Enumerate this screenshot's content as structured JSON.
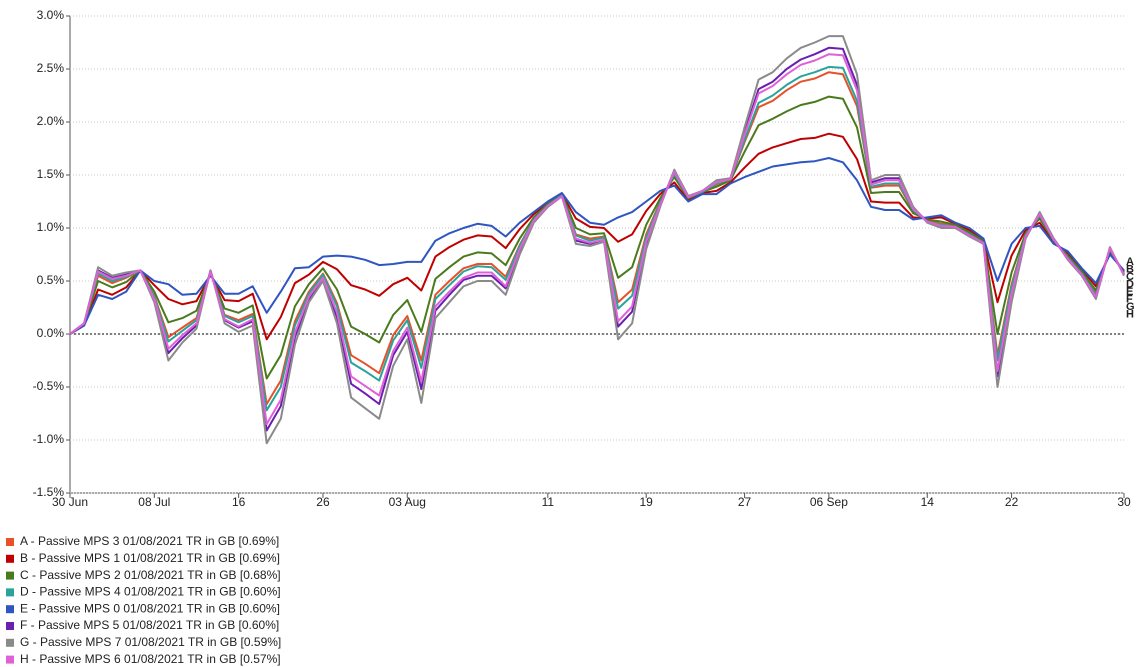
{
  "chart_data": {
    "type": "line",
    "legend": "bottom-left",
    "grid": true,
    "zero_line": true,
    "x": [
      0,
      1,
      2,
      3,
      4,
      5,
      6,
      7,
      8,
      9,
      10,
      11,
      12,
      13,
      14,
      15,
      16,
      17,
      18,
      19,
      20,
      21,
      22,
      23,
      24,
      25,
      26,
      27,
      28,
      29,
      30,
      31,
      32,
      33,
      34,
      35,
      36,
      37,
      38,
      39,
      40,
      41,
      42,
      43,
      44,
      45,
      46,
      47,
      48,
      49,
      50,
      51,
      52,
      53,
      54,
      55,
      56,
      57,
      58,
      59,
      60,
      61,
      62,
      63,
      64,
      65,
      66,
      67,
      68,
      69,
      70,
      71,
      72,
      73,
      74,
      75
    ],
    "xlim": [
      0,
      75
    ],
    "xticks": [
      {
        "value": 0,
        "label": "30 Jun"
      },
      {
        "value": 6,
        "label": "08 Jul"
      },
      {
        "value": 12,
        "label": "16"
      },
      {
        "value": 18,
        "label": "26"
      },
      {
        "value": 24,
        "label": "03 Aug"
      },
      {
        "value": 34,
        "label": "11"
      },
      {
        "value": 41,
        "label": "19"
      },
      {
        "value": 48,
        "label": "27"
      },
      {
        "value": 54,
        "label": "06 Sep"
      },
      {
        "value": 61,
        "label": "14"
      },
      {
        "value": 67,
        "label": "22"
      },
      {
        "value": 75,
        "label": "30"
      }
    ],
    "ylim": [
      -1.5,
      3
    ],
    "yticks": [
      {
        "value": -1.5,
        "label": "-1.5%"
      },
      {
        "value": -1,
        "label": "-1.0%"
      },
      {
        "value": -0.5,
        "label": "-0.5%"
      },
      {
        "value": 0,
        "label": "0.0%"
      },
      {
        "value": 0.5,
        "label": "0.5%"
      },
      {
        "value": 1,
        "label": "1.0%"
      },
      {
        "value": 1.5,
        "label": "1.5%"
      },
      {
        "value": 2,
        "label": "2.0%"
      },
      {
        "value": 2.5,
        "label": "2.5%"
      },
      {
        "value": 3,
        "label": "3.0%"
      }
    ],
    "end_labels": [
      "A",
      "B",
      "C",
      "D",
      "E",
      "F",
      "G",
      "H"
    ],
    "series": [
      {
        "name": "A - Passive MPS 3 01/08/2021 TR in GB [0.69%]",
        "color": "#e8502a",
        "values": [
          0,
          0.09,
          0.55,
          0.48,
          0.53,
          0.6,
          0.36,
          -0.03,
          0.06,
          0.15,
          0.59,
          0.18,
          0.13,
          0.19,
          -0.66,
          -0.44,
          0.12,
          0.4,
          0.57,
          0.29,
          -0.2,
          -0.28,
          -0.37,
          -0.01,
          0.17,
          -0.25,
          0.37,
          0.5,
          0.62,
          0.66,
          0.66,
          0.54,
          0.84,
          1.08,
          1.22,
          1.31,
          0.94,
          0.9,
          0.92,
          0.3,
          0.42,
          0.94,
          1.25,
          1.51,
          1.29,
          1.34,
          1.41,
          1.46,
          1.81,
          2.14,
          2.2,
          2.3,
          2.38,
          2.41,
          2.47,
          2.45,
          2.15,
          1.38,
          1.4,
          1.4,
          1.16,
          1.07,
          1.04,
          1.02,
          0.94,
          0.87,
          -0.2,
          0.47,
          0.93,
          1.11,
          0.89,
          0.72,
          0.57,
          0.38,
          0.8,
          0.57
        ]
      },
      {
        "name": "B - Passive MPS 1 01/08/2021 TR in GB [0.69%]",
        "color": "#c00000",
        "values": [
          0,
          0.08,
          0.42,
          0.37,
          0.44,
          0.6,
          0.46,
          0.33,
          0.28,
          0.31,
          0.56,
          0.32,
          0.31,
          0.38,
          -0.05,
          0.16,
          0.48,
          0.56,
          0.68,
          0.61,
          0.46,
          0.42,
          0.36,
          0.47,
          0.53,
          0.41,
          0.73,
          0.82,
          0.89,
          0.93,
          0.92,
          0.81,
          0.99,
          1.13,
          1.24,
          1.32,
          1.09,
          1.01,
          1.0,
          0.87,
          0.94,
          1.16,
          1.32,
          1.43,
          1.26,
          1.33,
          1.35,
          1.43,
          1.57,
          1.7,
          1.76,
          1.8,
          1.84,
          1.85,
          1.89,
          1.86,
          1.65,
          1.25,
          1.24,
          1.24,
          1.1,
          1.09,
          1.1,
          1.04,
          0.98,
          0.89,
          0.3,
          0.74,
          0.98,
          1.05,
          0.86,
          0.76,
          0.61,
          0.45,
          0.76,
          0.59
        ]
      },
      {
        "name": "C - Passive MPS 2 01/08/2021 TR in GB [0.68%]",
        "color": "#4a7a1e",
        "values": [
          0,
          0.09,
          0.5,
          0.44,
          0.49,
          0.6,
          0.4,
          0.11,
          0.15,
          0.22,
          0.58,
          0.24,
          0.2,
          0.27,
          -0.42,
          -0.2,
          0.26,
          0.47,
          0.62,
          0.42,
          0.07,
          0,
          -0.08,
          0.18,
          0.32,
          0.02,
          0.52,
          0.63,
          0.73,
          0.77,
          0.76,
          0.65,
          0.9,
          1.1,
          1.23,
          1.32,
          1.0,
          0.94,
          0.95,
          0.53,
          0.63,
          1.03,
          1.28,
          1.48,
          1.28,
          1.34,
          1.39,
          1.45,
          1.72,
          1.97,
          2.03,
          2.1,
          2.16,
          2.19,
          2.24,
          2.22,
          1.95,
          1.33,
          1.34,
          1.34,
          1.14,
          1.08,
          1.06,
          1.03,
          0.96,
          0.88,
          0,
          0.58,
          0.95,
          1.09,
          0.88,
          0.74,
          0.59,
          0.41,
          0.79,
          0.58
        ]
      },
      {
        "name": "D - Passive MPS 4 01/08/2021 TR in GB [0.60%]",
        "color": "#2aa39a",
        "values": [
          0,
          0.1,
          0.57,
          0.5,
          0.54,
          0.6,
          0.35,
          -0.07,
          0.03,
          0.13,
          0.59,
          0.17,
          0.11,
          0.17,
          -0.72,
          -0.5,
          0.08,
          0.38,
          0.56,
          0.26,
          -0.27,
          -0.35,
          -0.44,
          -0.06,
          0.13,
          -0.32,
          0.33,
          0.46,
          0.59,
          0.64,
          0.63,
          0.51,
          0.83,
          1.08,
          1.21,
          1.31,
          0.93,
          0.88,
          0.91,
          0.24,
          0.36,
          0.91,
          1.24,
          1.51,
          1.29,
          1.34,
          1.42,
          1.46,
          1.83,
          2.18,
          2.25,
          2.35,
          2.43,
          2.47,
          2.52,
          2.51,
          2.2,
          1.39,
          1.42,
          1.42,
          1.17,
          1.06,
          1.03,
          1.01,
          0.94,
          0.86,
          -0.25,
          0.44,
          0.93,
          1.12,
          0.89,
          0.72,
          0.57,
          0.37,
          0.8,
          0.56
        ]
      },
      {
        "name": "E - Passive MPS 0 01/08/2021 TR in GB [0.60%]",
        "color": "#2f55c0",
        "values": [
          0,
          0.08,
          0.37,
          0.33,
          0.4,
          0.6,
          0.5,
          0.47,
          0.37,
          0.38,
          0.55,
          0.38,
          0.38,
          0.45,
          0.2,
          0.4,
          0.62,
          0.63,
          0.73,
          0.74,
          0.73,
          0.7,
          0.65,
          0.66,
          0.68,
          0.68,
          0.88,
          0.95,
          1.0,
          1.04,
          1.02,
          0.92,
          1.05,
          1.15,
          1.25,
          1.33,
          1.15,
          1.05,
          1.03,
          1.1,
          1.15,
          1.25,
          1.35,
          1.4,
          1.25,
          1.32,
          1.32,
          1.42,
          1.48,
          1.53,
          1.58,
          1.6,
          1.62,
          1.63,
          1.66,
          1.62,
          1.45,
          1.2,
          1.17,
          1.17,
          1.08,
          1.1,
          1.12,
          1.05,
          1.0,
          0.9,
          0.5,
          0.85,
          1.0,
          1.02,
          0.85,
          0.78,
          0.62,
          0.48,
          0.75,
          0.6
        ]
      },
      {
        "name": "F - Passive MPS 5 01/08/2021 TR in GB [0.60%]",
        "color": "#6a1fb0",
        "values": [
          0,
          0.1,
          0.6,
          0.53,
          0.56,
          0.6,
          0.32,
          -0.18,
          -0.04,
          0.08,
          0.6,
          0.13,
          0.06,
          0.12,
          -0.91,
          -0.68,
          -0.03,
          0.33,
          0.52,
          0.16,
          -0.47,
          -0.56,
          -0.66,
          -0.2,
          0.02,
          -0.52,
          0.22,
          0.37,
          0.51,
          0.55,
          0.55,
          0.43,
          0.78,
          1.06,
          1.2,
          1.3,
          0.88,
          0.85,
          0.89,
          0.07,
          0.21,
          0.85,
          1.22,
          1.54,
          1.3,
          1.35,
          1.44,
          1.47,
          1.9,
          2.31,
          2.38,
          2.5,
          2.59,
          2.64,
          2.7,
          2.69,
          2.35,
          1.43,
          1.47,
          1.47,
          1.19,
          1.06,
          1.01,
          1.0,
          0.93,
          0.86,
          -0.4,
          0.36,
          0.91,
          1.14,
          0.9,
          0.71,
          0.56,
          0.35,
          0.81,
          0.56
        ]
      },
      {
        "name": "G - Passive MPS 7 01/08/2021 TR in GB [0.59%]",
        "color": "#8a8a8a",
        "values": [
          0,
          0.1,
          0.63,
          0.55,
          0.58,
          0.6,
          0.3,
          -0.25,
          -0.08,
          0.05,
          0.6,
          0.1,
          0.02,
          0.08,
          -1.03,
          -0.8,
          -0.1,
          0.3,
          0.5,
          0.1,
          -0.6,
          -0.7,
          -0.8,
          -0.3,
          -0.05,
          -0.65,
          0.15,
          0.3,
          0.45,
          0.5,
          0.5,
          0.37,
          0.75,
          1.05,
          1.2,
          1.3,
          0.85,
          0.83,
          0.87,
          -0.05,
          0.1,
          0.8,
          1.2,
          1.55,
          1.3,
          1.35,
          1.45,
          1.47,
          1.95,
          2.4,
          2.47,
          2.6,
          2.7,
          2.75,
          2.81,
          2.81,
          2.45,
          1.45,
          1.5,
          1.5,
          1.2,
          1.05,
          1.0,
          1.0,
          0.92,
          0.85,
          -0.5,
          0.3,
          0.9,
          1.15,
          0.9,
          0.7,
          0.55,
          0.33,
          0.82,
          0.55
        ]
      },
      {
        "name": "H - Passive MPS 6 01/08/2021 TR in GB [0.57%]",
        "color": "#e060d8",
        "values": [
          0,
          0.1,
          0.59,
          0.52,
          0.55,
          0.6,
          0.33,
          -0.14,
          -0.01,
          0.1,
          0.59,
          0.14,
          0.07,
          0.14,
          -0.85,
          -0.62,
          0.01,
          0.35,
          0.53,
          0.2,
          -0.4,
          -0.49,
          -0.58,
          -0.16,
          0.06,
          -0.45,
          0.26,
          0.4,
          0.53,
          0.58,
          0.58,
          0.45,
          0.8,
          1.07,
          1.21,
          1.3,
          0.9,
          0.86,
          0.89,
          0.12,
          0.26,
          0.87,
          1.22,
          1.53,
          1.29,
          1.35,
          1.43,
          1.46,
          1.88,
          2.27,
          2.34,
          2.45,
          2.54,
          2.58,
          2.64,
          2.63,
          2.3,
          1.41,
          1.45,
          1.45,
          1.18,
          1.06,
          1.02,
          1.01,
          0.93,
          0.86,
          -0.35,
          0.38,
          0.92,
          1.13,
          0.89,
          0.71,
          0.56,
          0.35,
          0.81,
          0.56
        ]
      }
    ]
  }
}
